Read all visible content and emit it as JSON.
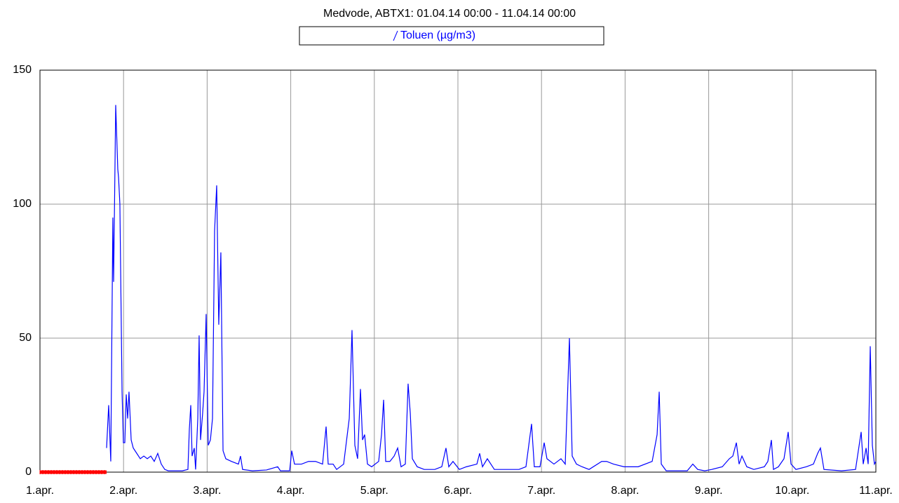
{
  "chart_data": {
    "type": "line",
    "title": "Medvode, ABTX1: 01.04.14 00:00 - 11.04.14 00:00",
    "xlim": [
      1,
      11
    ],
    "xticks": [
      {
        "value": 1,
        "label": "1.apr."
      },
      {
        "value": 2,
        "label": "2.apr."
      },
      {
        "value": 3,
        "label": "3.apr."
      },
      {
        "value": 4,
        "label": "4.apr."
      },
      {
        "value": 5,
        "label": "5.apr."
      },
      {
        "value": 6,
        "label": "6.apr."
      },
      {
        "value": 7,
        "label": "7.apr."
      },
      {
        "value": 8,
        "label": "8.apr."
      },
      {
        "value": 9,
        "label": "9.apr."
      },
      {
        "value": 10,
        "label": "10.apr."
      },
      {
        "value": 11,
        "label": "11.apr."
      }
    ],
    "ylim": [
      0,
      150
    ],
    "yticks": [
      0,
      50,
      100,
      150
    ],
    "grid": true,
    "no_data": {
      "color": "#ff0000",
      "x": [
        1,
        1.797
      ]
    },
    "series": [
      {
        "name": "Toluen (µg/m3)",
        "color": "#0000ff",
        "x": [
          1.797,
          1.822,
          1.847,
          1.872,
          1.881,
          1.906,
          1.931,
          1.94,
          1.956,
          1.982,
          1.998,
          2.015,
          2.032,
          2.049,
          2.065,
          2.091,
          2.116,
          2.158,
          2.2,
          2.242,
          2.284,
          2.326,
          2.367,
          2.409,
          2.451,
          2.493,
          2.535,
          2.703,
          2.77,
          2.787,
          2.804,
          2.82,
          2.846,
          2.862,
          2.888,
          2.904,
          2.921,
          2.946,
          2.963,
          2.988,
          3.013,
          3.039,
          3.064,
          3.089,
          3.114,
          3.139,
          3.164,
          3.19,
          3.223,
          3.29,
          3.374,
          3.399,
          3.424,
          3.542,
          3.71,
          3.844,
          3.877,
          3.987,
          4.012,
          4.045,
          4.129,
          4.213,
          4.297,
          4.381,
          4.423,
          4.448,
          4.507,
          4.549,
          4.633,
          4.7,
          4.733,
          4.767,
          4.8,
          4.834,
          4.859,
          4.884,
          4.918,
          4.968,
          5.052,
          5.086,
          5.111,
          5.136,
          5.186,
          5.237,
          5.279,
          5.32,
          5.371,
          5.404,
          5.43,
          5.455,
          5.513,
          5.597,
          5.723,
          5.807,
          5.857,
          5.891,
          5.941,
          6.017,
          6.101,
          6.227,
          6.26,
          6.294,
          6.352,
          6.436,
          6.562,
          6.73,
          6.814,
          6.881,
          6.914,
          6.982,
          7.032,
          7.065,
          7.149,
          7.233,
          7.284,
          7.334,
          7.367,
          7.418,
          7.485,
          7.569,
          7.72,
          7.779,
          7.862,
          7.988,
          8.156,
          8.324,
          8.383,
          8.408,
          8.433,
          8.492,
          8.743,
          8.81,
          8.869,
          8.953,
          9.037,
          9.163,
          9.247,
          9.289,
          9.331,
          9.364,
          9.398,
          9.456,
          9.54,
          9.666,
          9.708,
          9.75,
          9.775,
          9.834,
          9.901,
          9.951,
          9.985,
          10.044,
          10.169,
          10.253,
          10.304,
          10.337,
          10.379,
          10.589,
          10.757,
          10.824,
          10.849,
          10.883,
          10.908,
          10.933,
          10.958,
          10.983,
          11.0
        ],
        "values": [
          9,
          25,
          4,
          95,
          71,
          137,
          113,
          110,
          100,
          30,
          11,
          11,
          29,
          20,
          30,
          12,
          9,
          7,
          5,
          6,
          5,
          6,
          4,
          7,
          3,
          1,
          0.5,
          0.5,
          1,
          16,
          25,
          6,
          9,
          1,
          20,
          51,
          12,
          22,
          30,
          59,
          10,
          12,
          20,
          90,
          107,
          55,
          82,
          8,
          5,
          4,
          3,
          6,
          1,
          0.5,
          0.8,
          2,
          0.5,
          0.5,
          8,
          3,
          3,
          4,
          4,
          3,
          17,
          3,
          3,
          1,
          3,
          20,
          53,
          10,
          5,
          31,
          12,
          14,
          3,
          2,
          4,
          14,
          27,
          4,
          4,
          6,
          9,
          2,
          3,
          33,
          22,
          5,
          2,
          1,
          1,
          2,
          9,
          2,
          4,
          1,
          2,
          3,
          7,
          2,
          5,
          1,
          1,
          1,
          2,
          18,
          2,
          2,
          11,
          5,
          3,
          5,
          3,
          50,
          6,
          3,
          2,
          1,
          4,
          4,
          3,
          2,
          2,
          4,
          14,
          30,
          3,
          0.5,
          0.5,
          3,
          1,
          0.5,
          1,
          2,
          5,
          6,
          11,
          3,
          6,
          2,
          1,
          2,
          4,
          12,
          1,
          2,
          5,
          15,
          3,
          1,
          2,
          3,
          7,
          9,
          1,
          0.5,
          1,
          15,
          3,
          9,
          3,
          47,
          10,
          3,
          4
        ]
      }
    ]
  }
}
